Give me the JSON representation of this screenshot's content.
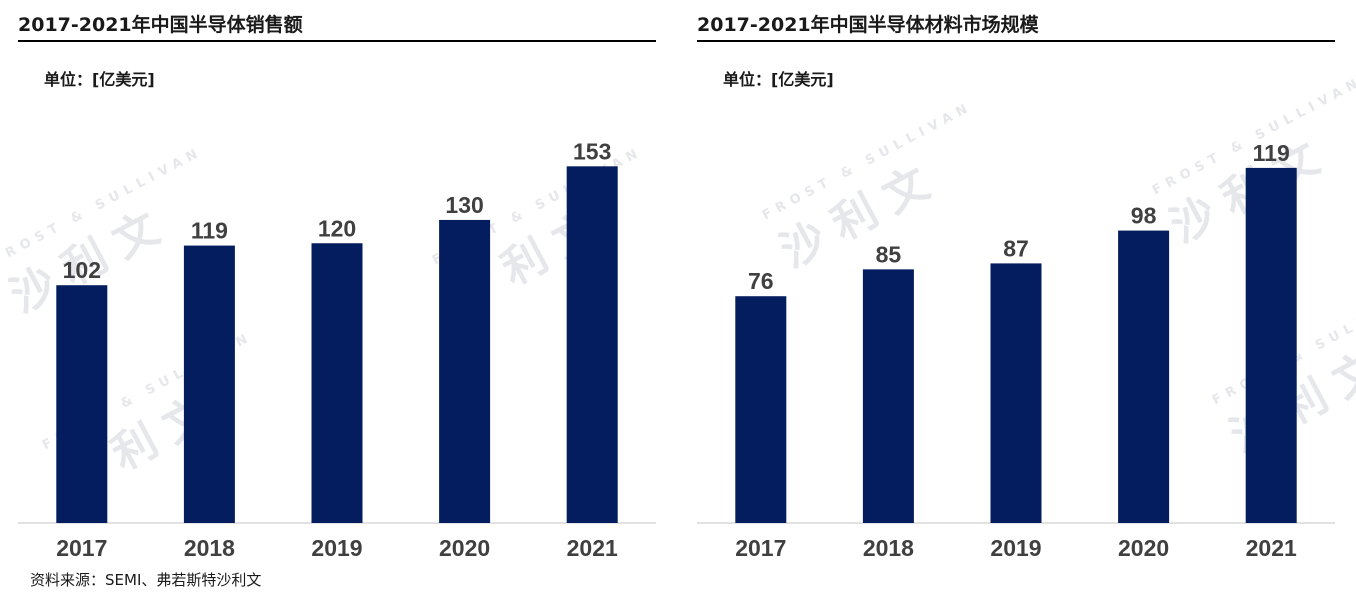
{
  "source_note": "资料来源：SEMI、弗若斯特沙利文",
  "watermark": {
    "en": "FROST & SULLIVAN",
    "cn": "沙利文"
  },
  "colors": {
    "bar": "#031d5e",
    "axis": "#d9d9d9",
    "label": "#404040"
  },
  "chart_data": [
    {
      "type": "bar",
      "title": "2017-2021年中国半导体销售额",
      "unit_label": "单位：[亿美元]",
      "xlabel": "",
      "ylabel": "",
      "categories": [
        "2017",
        "2018",
        "2019",
        "2020",
        "2021"
      ],
      "values": [
        102,
        119,
        120,
        130,
        153
      ],
      "data_labels": [
        "102",
        "119",
        "120",
        "130",
        "153"
      ],
      "ylim": [
        0,
        160
      ],
      "grid": false
    },
    {
      "type": "bar",
      "title": "2017-2021年中国半导体材料市场规模",
      "unit_label": "单位：[亿美元]",
      "xlabel": "",
      "ylabel": "",
      "categories": [
        "2017",
        "2018",
        "2019",
        "2020",
        "2021"
      ],
      "values": [
        76,
        85,
        87,
        98,
        119
      ],
      "data_labels": [
        "76",
        "85",
        "87",
        "98",
        "119"
      ],
      "ylim": [
        0,
        125
      ],
      "grid": false
    }
  ]
}
